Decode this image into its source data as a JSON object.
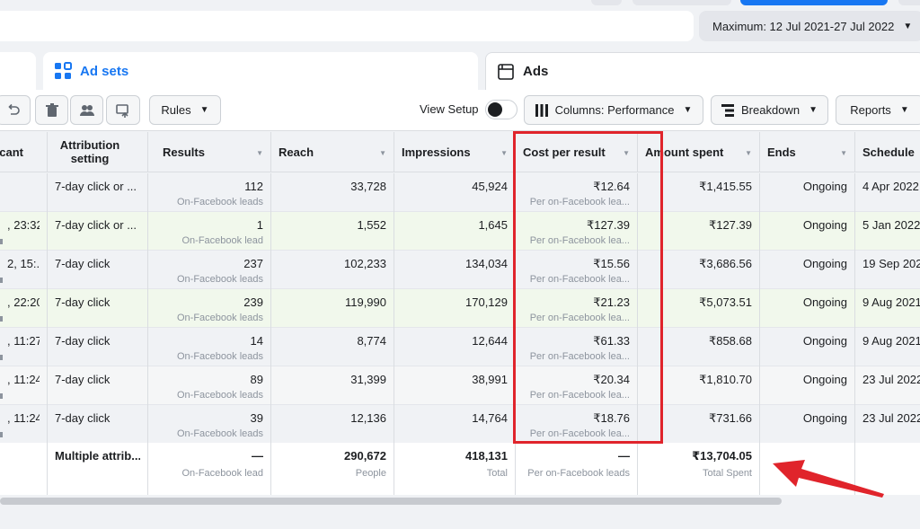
{
  "date_range": {
    "label": "Maximum: 12 Jul 2021-27 Jul 2022"
  },
  "tabs": {
    "adsets": "Ad sets",
    "ads": "Ads"
  },
  "toolbar": {
    "rules": "Rules",
    "view_setup": "View Setup",
    "columns": "Columns: Performance",
    "breakdown": "Breakdown",
    "reports": "Reports"
  },
  "headers": {
    "delivery": "cant",
    "attribution": "Attribution setting",
    "results": "Results",
    "reach": "Reach",
    "impressions": "Impressions",
    "cost": "Cost per result",
    "amount": "Amount spent",
    "ends": "Ends",
    "schedule": "Schedule"
  },
  "rows": [
    {
      "left": "",
      "attribution": "7-day click or ...",
      "results": "112",
      "results_sub": "On-Facebook leads",
      "reach": "33,728",
      "impressions": "45,924",
      "cost": "₹12.64",
      "cost_sub": "Per on-Facebook lea...",
      "amount": "₹1,415.55",
      "ends": "Ongoing",
      "schedule": "4 Apr 2022"
    },
    {
      "left": ", 23:32",
      "attribution": "7-day click or ...",
      "results": "1",
      "results_sub": "On-Facebook lead",
      "reach": "1,552",
      "impressions": "1,645",
      "cost": "₹127.39",
      "cost_sub": "Per on-Facebook lea...",
      "amount": "₹127.39",
      "ends": "Ongoing",
      "schedule": "5 Jan 2022"
    },
    {
      "left": "2, 15:...",
      "attribution": "7-day click",
      "results": "237",
      "results_sub": "On-Facebook leads",
      "reach": "102,233",
      "impressions": "134,034",
      "cost": "₹15.56",
      "cost_sub": "Per on-Facebook lea...",
      "amount": "₹3,686.56",
      "ends": "Ongoing",
      "schedule": "19 Sep 2021"
    },
    {
      "left": ", 22:20",
      "attribution": "7-day click",
      "results": "239",
      "results_sub": "On-Facebook leads",
      "reach": "119,990",
      "impressions": "170,129",
      "cost": "₹21.23",
      "cost_sub": "Per on-Facebook lea...",
      "amount": "₹5,073.51",
      "ends": "Ongoing",
      "schedule": "9 Aug 2021"
    },
    {
      "left": ", 11:27",
      "attribution": "7-day click",
      "results": "14",
      "results_sub": "On-Facebook leads",
      "reach": "8,774",
      "impressions": "12,644",
      "cost": "₹61.33",
      "cost_sub": "Per on-Facebook lea...",
      "amount": "₹858.68",
      "ends": "Ongoing",
      "schedule": "9 Aug 2021"
    },
    {
      "left": ", 11:24",
      "attribution": "7-day click",
      "results": "89",
      "results_sub": "On-Facebook leads",
      "reach": "31,399",
      "impressions": "38,991",
      "cost": "₹20.34",
      "cost_sub": "Per on-Facebook lea...",
      "amount": "₹1,810.70",
      "ends": "Ongoing",
      "schedule": "23 Jul 2022"
    },
    {
      "left": ", 11:24",
      "attribution": "7-day click",
      "results": "39",
      "results_sub": "On-Facebook leads",
      "reach": "12,136",
      "impressions": "14,764",
      "cost": "₹18.76",
      "cost_sub": "Per on-Facebook lea...",
      "amount": "₹731.66",
      "ends": "Ongoing",
      "schedule": "23 Jul 2022"
    }
  ],
  "totals": {
    "attribution": "Multiple attrib...",
    "results": "—",
    "results_sub": "On-Facebook lead",
    "reach": "290,672",
    "reach_sub": "People",
    "impressions": "418,131",
    "impressions_sub": "Total",
    "cost": "—",
    "cost_sub": "Per on-Facebook leads",
    "amount": "₹13,704.05",
    "amount_sub": "Total Spent"
  },
  "colors": {
    "accent": "#1877f2",
    "highlight": "#e0242b",
    "row_green": "#f1f8ec"
  }
}
